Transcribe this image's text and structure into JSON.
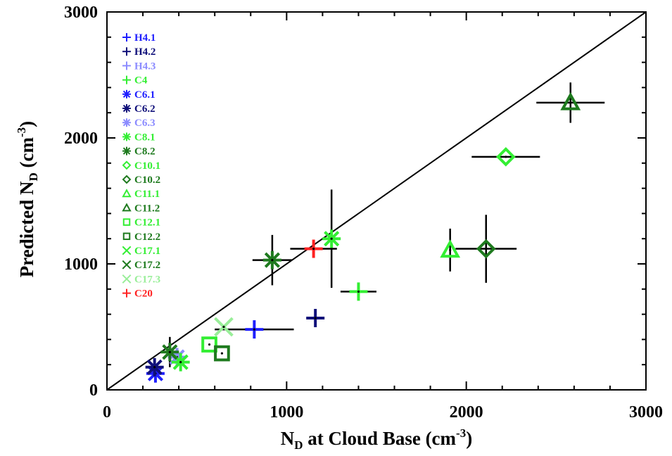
{
  "chart_data": {
    "type": "scatter",
    "xlabel": {
      "main": "N",
      "sub": "D",
      "rest": " at Cloud Base (cm",
      "sup": "-3",
      "end": ")"
    },
    "ylabel": {
      "main": "Predicted N",
      "sub": "D",
      "rest": " (cm",
      "sup": "-3",
      "end": ")"
    },
    "xlim": [
      0,
      3000
    ],
    "ylim": [
      0,
      3000
    ],
    "x_ticks": [
      0,
      1000,
      2000,
      3000
    ],
    "y_ticks": [
      0,
      1000,
      2000,
      3000
    ],
    "x_tick_labels": [
      "0",
      "1000",
      "2000",
      "3000"
    ],
    "y_tick_labels": [
      "0",
      "1000",
      "2000",
      "3000"
    ],
    "grid": false,
    "reference_line": "1:1",
    "legend_position": "top-left",
    "series": [
      {
        "name": "H4.1",
        "marker": "plus",
        "color": "#1f1fff",
        "points": [
          {
            "x": 820,
            "y": 480,
            "xerr": 220,
            "yerr": 0
          }
        ]
      },
      {
        "name": "H4.2",
        "marker": "plus",
        "color": "#10107a",
        "points": [
          {
            "x": 1160,
            "y": 570,
            "xerr": 0,
            "yerr": 0
          }
        ]
      },
      {
        "name": "H4.3",
        "marker": "plus",
        "color": "#8c8cff",
        "points": []
      },
      {
        "name": "C4",
        "marker": "plus",
        "color": "#33ee33",
        "points": [
          {
            "x": 1400,
            "y": 780,
            "xerr": 100,
            "yerr": 0
          }
        ]
      },
      {
        "name": "C6.1",
        "marker": "asterisk",
        "color": "#1f1fff",
        "points": [
          {
            "x": 270,
            "y": 130,
            "xerr": 0,
            "yerr": 0
          }
        ]
      },
      {
        "name": "C6.2",
        "marker": "asterisk",
        "color": "#10107a",
        "points": [
          {
            "x": 265,
            "y": 180,
            "xerr": 0,
            "yerr": 0
          }
        ]
      },
      {
        "name": "C6.3",
        "marker": "asterisk",
        "color": "#8c8cff",
        "points": [
          {
            "x": 390,
            "y": 260,
            "xerr": 0,
            "yerr": 0
          }
        ]
      },
      {
        "name": "C8.1",
        "marker": "asterisk",
        "color": "#33ee33",
        "points": [
          {
            "x": 410,
            "y": 220,
            "xerr": 0,
            "yerr": 0
          },
          {
            "x": 1250,
            "y": 1200,
            "xerr": 0,
            "yerr": 390
          }
        ]
      },
      {
        "name": "C8.2",
        "marker": "asterisk",
        "color": "#1e7a1e",
        "points": [
          {
            "x": 350,
            "y": 300,
            "xerr": 0,
            "yerr": 120
          },
          {
            "x": 920,
            "y": 1030,
            "xerr": 110,
            "yerr": 200
          }
        ]
      },
      {
        "name": "C10.1",
        "marker": "diamond",
        "color": "#33ee33",
        "points": [
          {
            "x": 2220,
            "y": 1850,
            "xerr": 190,
            "yerr": 0
          }
        ]
      },
      {
        "name": "C10.2",
        "marker": "diamond",
        "color": "#1e7a1e",
        "points": [
          {
            "x": 2110,
            "y": 1120,
            "xerr": 170,
            "yerr": 270
          }
        ]
      },
      {
        "name": "C11.1",
        "marker": "triangle",
        "color": "#33ee33",
        "points": [
          {
            "x": 1910,
            "y": 1110,
            "xerr": 0,
            "yerr": 170
          }
        ]
      },
      {
        "name": "C11.2",
        "marker": "triangle",
        "color": "#1e7a1e",
        "points": [
          {
            "x": 2580,
            "y": 2280,
            "xerr": 190,
            "yerr": 160
          }
        ]
      },
      {
        "name": "C12.1",
        "marker": "square",
        "color": "#33ee33",
        "points": [
          {
            "x": 570,
            "y": 360,
            "xerr": 0,
            "yerr": 0
          }
        ]
      },
      {
        "name": "C12.2",
        "marker": "square",
        "color": "#1e7a1e",
        "points": [
          {
            "x": 640,
            "y": 290,
            "xerr": 0,
            "yerr": 0
          }
        ]
      },
      {
        "name": "C17.1",
        "marker": "cross",
        "color": "#33ee33",
        "points": []
      },
      {
        "name": "C17.2",
        "marker": "cross",
        "color": "#1e7a1e",
        "points": []
      },
      {
        "name": "C17.3",
        "marker": "cross",
        "color": "#99ee99",
        "points": [
          {
            "x": 650,
            "y": 500,
            "xerr": 0,
            "yerr": 0
          }
        ]
      },
      {
        "name": "C20",
        "marker": "plus",
        "color": "#ff2222",
        "points": [
          {
            "x": 1150,
            "y": 1120,
            "xerr": 130,
            "yerr": 0
          }
        ]
      }
    ]
  }
}
